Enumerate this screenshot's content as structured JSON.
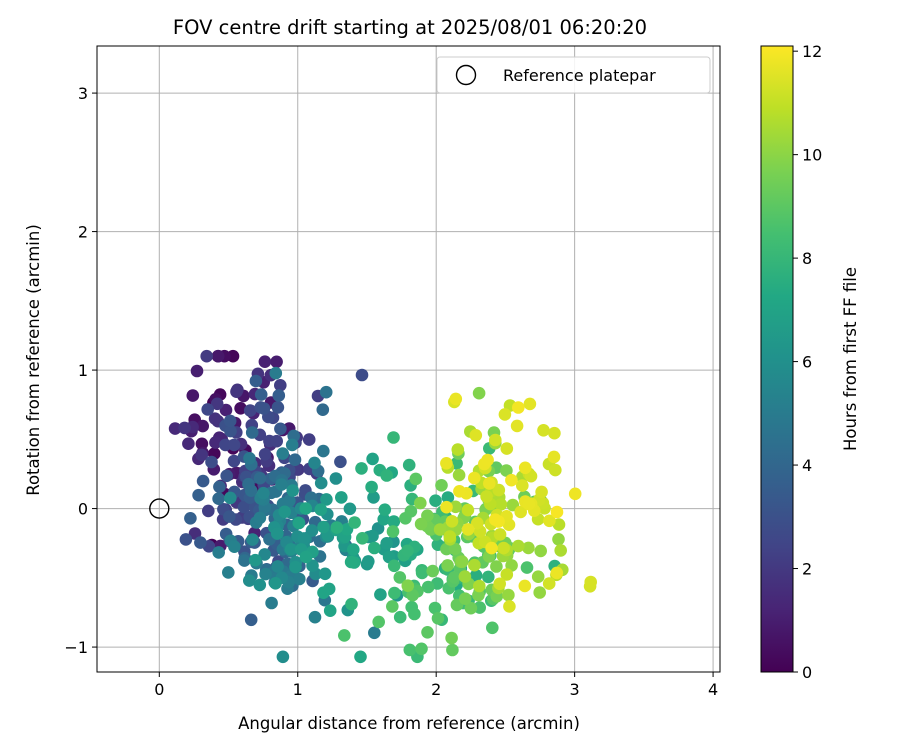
{
  "chart_data": {
    "type": "scatter",
    "title": "FOV centre drift starting at 2025/08/01 06:20:20",
    "xlabel": "Angular distance from reference (arcmin)",
    "ylabel": "Rotation from reference (arcmin)",
    "xlim": [
      -0.45,
      4.05
    ],
    "ylim": [
      -1.18,
      3.34
    ],
    "xticks": [
      "0",
      "1",
      "2",
      "3",
      "4"
    ],
    "yticks": [
      "−1",
      "0",
      "1",
      "2",
      "3"
    ],
    "grid": true,
    "legend": {
      "placement": "top-right",
      "entries": [
        "Reference platepar"
      ]
    },
    "colorbar": {
      "label": "Hours from first FF file",
      "range": [
        0,
        12.1
      ],
      "ticks": [
        "0",
        "2",
        "4",
        "6",
        "8",
        "10",
        "12"
      ],
      "colormap": "viridis"
    },
    "reference_point": {
      "x": 0,
      "y": 0
    },
    "points": {
      "generator": "deterministic-sample",
      "count": 600,
      "note_ranges": {
        "x": [
          0.1,
          3.2
        ],
        "y": [
          -1.07,
          1.1
        ],
        "hours": [
          0,
          12
        ]
      }
    }
  }
}
